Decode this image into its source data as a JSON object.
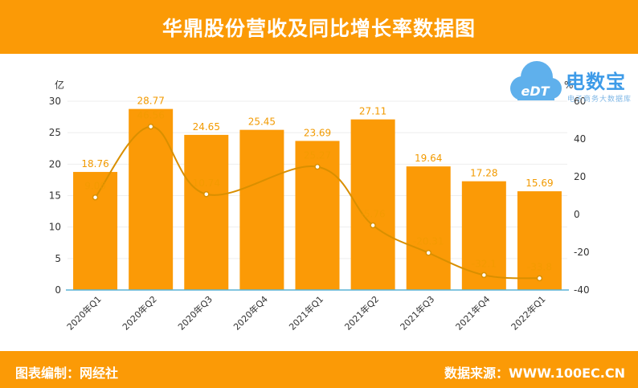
{
  "header": {
    "title": "华鼎股份营收及同比增长率数据图"
  },
  "watermark": {
    "name": "电数宝",
    "sub": "电子商务大数据库",
    "badge": "eDT"
  },
  "footer": {
    "editor": "图表编制：网经社",
    "source": "数据来源：WWW.100EC.CN"
  },
  "colors": {
    "brand": "#fb9a06",
    "bar": "#fb9a06",
    "line": "#d98f00",
    "axis": "#5ab4d6",
    "label": "#f29a00",
    "grid": "#eeeeee",
    "logo": "#3d9be8"
  },
  "chart_data": {
    "type": "bar",
    "title": "华鼎股份营收及同比增长率数据图",
    "categories": [
      "2020年Q1",
      "2020年Q2",
      "2020年Q3",
      "2020年Q4",
      "2021年Q1",
      "2021年Q2",
      "2021年Q3",
      "2021年Q4",
      "2022年Q1"
    ],
    "series": [
      {
        "type": "bar",
        "axis": "left",
        "values": [
          18.76,
          28.77,
          24.65,
          25.45,
          23.69,
          27.11,
          19.64,
          17.28,
          15.69
        ]
      },
      {
        "type": "line",
        "axis": "right",
        "values": [
          9.06,
          46.56,
          10.74,
          null,
          25.27,
          -5.76,
          -20.31,
          -32.1,
          -33.8
        ]
      }
    ],
    "ylabel": "亿",
    "ylim": [
      0,
      30
    ],
    "yticks": [
      0,
      5,
      10,
      15,
      20,
      25,
      30
    ],
    "y2label": "%",
    "y2lim": [
      -40,
      60
    ],
    "y2ticks": [
      -40,
      -20,
      0,
      20,
      40,
      60
    ],
    "grid": true,
    "legend": "none"
  }
}
